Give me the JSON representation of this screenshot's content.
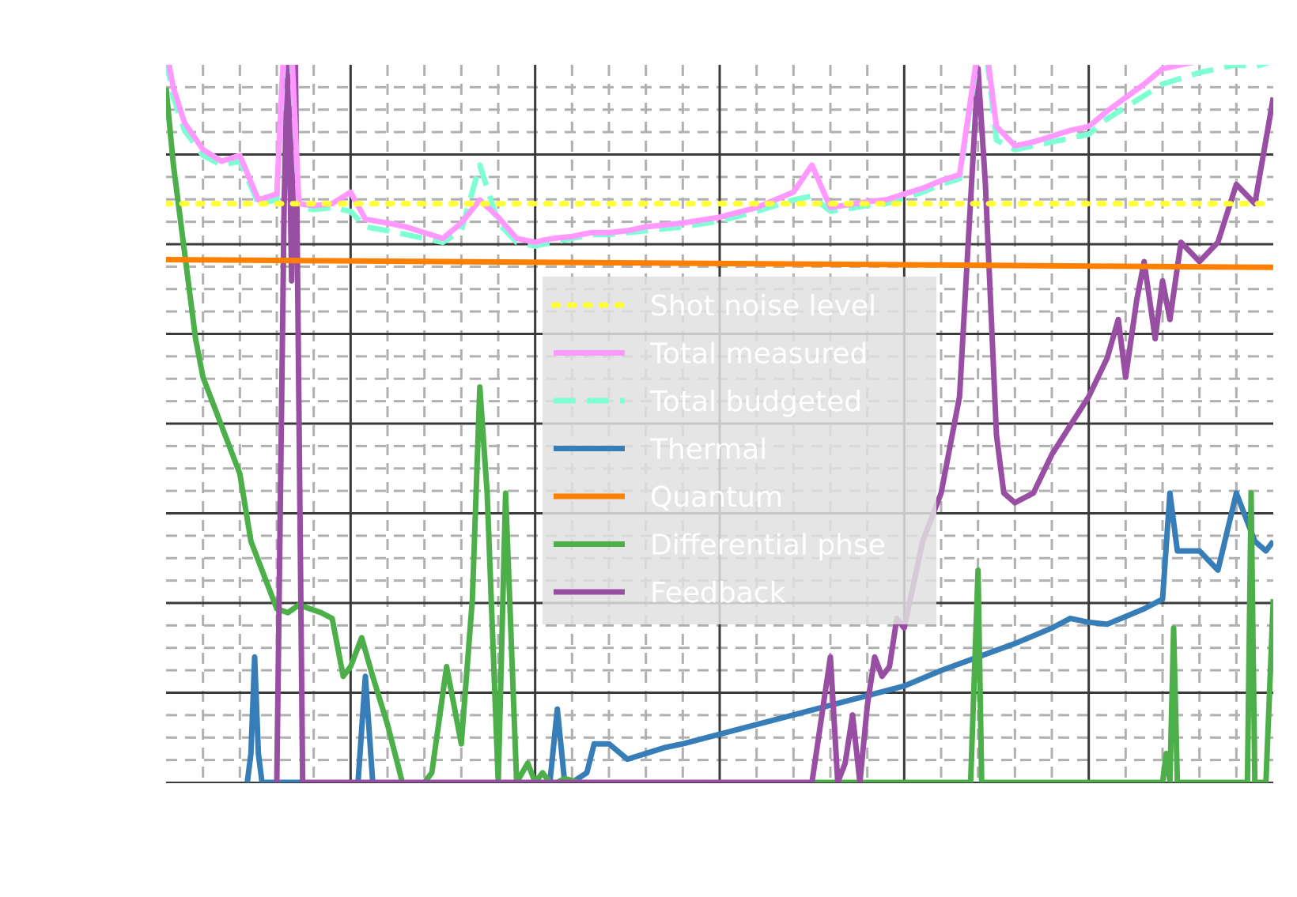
{
  "chart_data": {
    "type": "line",
    "title": "",
    "xlabel": "",
    "ylabel": "",
    "x_range": [
      0,
      3
    ],
    "y_range": [
      0,
      3.72
    ],
    "x_major_divisions": 6,
    "y_major_divisions": 8,
    "grid": true,
    "legend_position": "center",
    "series": [
      {
        "name": "Shot noise level",
        "color": "#ffff33",
        "style": "dotted",
        "x": [
          0,
          3
        ],
        "y": [
          3.0,
          3.0
        ]
      },
      {
        "name": "Total measured",
        "color": "#ff99ff",
        "style": "solid",
        "x": [
          0,
          0.02,
          0.05,
          0.1,
          0.15,
          0.2,
          0.25,
          0.3,
          0.32,
          0.34,
          0.36,
          0.4,
          0.45,
          0.5,
          0.54,
          0.6,
          0.65,
          0.7,
          0.75,
          0.8,
          0.85,
          0.9,
          0.95,
          1.0,
          1.02,
          1.05,
          1.1,
          1.15,
          1.2,
          1.25,
          1.3,
          1.4,
          1.5,
          1.6,
          1.7,
          1.75,
          1.8,
          1.9,
          1.95,
          2.0,
          2.05,
          2.1,
          2.15,
          2.2,
          2.22,
          2.25,
          2.3,
          2.35,
          2.4,
          2.45,
          2.5,
          2.55,
          2.6,
          2.65,
          2.7,
          2.75,
          2.8,
          2.85,
          2.9,
          2.95,
          3.0
        ],
        "y": [
          3.8,
          3.6,
          3.42,
          3.28,
          3.22,
          3.25,
          3.02,
          3.05,
          3.85,
          3.8,
          3.0,
          2.99,
          3.0,
          3.06,
          2.92,
          2.9,
          2.88,
          2.85,
          2.82,
          2.9,
          3.02,
          2.93,
          2.82,
          2.8,
          2.81,
          2.82,
          2.83,
          2.85,
          2.85,
          2.86,
          2.88,
          2.9,
          2.93,
          2.98,
          3.06,
          3.2,
          2.98,
          3.01,
          3.02,
          3.05,
          3.08,
          3.12,
          3.15,
          3.8,
          3.85,
          3.4,
          3.3,
          3.32,
          3.35,
          3.38,
          3.4,
          3.48,
          3.55,
          3.62,
          3.7,
          3.72,
          3.74,
          3.75,
          3.78,
          3.76,
          3.8
        ]
      },
      {
        "name": "Total budgeted",
        "color": "#7fffd4",
        "style": "dashed",
        "x": [
          0,
          0.02,
          0.05,
          0.1,
          0.15,
          0.2,
          0.25,
          0.3,
          0.32,
          0.34,
          0.36,
          0.4,
          0.45,
          0.5,
          0.54,
          0.6,
          0.65,
          0.7,
          0.75,
          0.8,
          0.85,
          0.9,
          0.95,
          1.0,
          1.02,
          1.05,
          1.1,
          1.15,
          1.2,
          1.25,
          1.3,
          1.4,
          1.5,
          1.6,
          1.7,
          1.75,
          1.8,
          1.9,
          1.95,
          2.0,
          2.05,
          2.1,
          2.15,
          2.2,
          2.22,
          2.25,
          2.3,
          2.35,
          2.4,
          2.45,
          2.5,
          2.55,
          2.6,
          2.65,
          2.7,
          2.75,
          2.8,
          2.85,
          2.9,
          2.95,
          3.0
        ],
        "y": [
          3.75,
          3.55,
          3.38,
          3.25,
          3.2,
          3.22,
          3.0,
          3.02,
          3.8,
          3.76,
          2.98,
          2.97,
          2.98,
          2.96,
          2.88,
          2.86,
          2.84,
          2.82,
          2.8,
          2.86,
          3.2,
          2.9,
          2.8,
          2.78,
          2.79,
          2.8,
          2.82,
          2.84,
          2.84,
          2.85,
          2.86,
          2.88,
          2.91,
          2.96,
          3.02,
          3.04,
          2.96,
          2.99,
          3.0,
          3.03,
          3.06,
          3.1,
          3.13,
          3.78,
          3.82,
          3.33,
          3.28,
          3.3,
          3.32,
          3.34,
          3.36,
          3.44,
          3.5,
          3.56,
          3.62,
          3.65,
          3.68,
          3.7,
          3.72,
          3.71,
          3.74
        ]
      },
      {
        "name": "Thermal",
        "color": "#377eb8",
        "style": "solid",
        "x": [
          0.22,
          0.23,
          0.24,
          0.25,
          0.26,
          0.52,
          0.54,
          0.56,
          1.0,
          1.04,
          1.06,
          1.08,
          1.1,
          1.14,
          1.16,
          1.2,
          1.25,
          1.3,
          1.35,
          1.4,
          1.5,
          1.6,
          1.7,
          1.8,
          1.9,
          2.0,
          2.1,
          2.2,
          2.3,
          2.4,
          2.45,
          2.5,
          2.55,
          2.6,
          2.65,
          2.7,
          2.72,
          2.74,
          2.8,
          2.85,
          2.9,
          2.95,
          2.98,
          3.0
        ],
        "y": [
          0.0,
          0.15,
          0.65,
          0.15,
          0.0,
          0.0,
          0.55,
          0.0,
          0.0,
          0.0,
          0.38,
          0.0,
          0.0,
          0.05,
          0.2,
          0.2,
          0.12,
          0.15,
          0.18,
          0.2,
          0.25,
          0.3,
          0.35,
          0.4,
          0.45,
          0.5,
          0.58,
          0.65,
          0.72,
          0.8,
          0.85,
          0.83,
          0.82,
          0.86,
          0.9,
          0.95,
          1.5,
          1.2,
          1.2,
          1.1,
          1.5,
          1.25,
          1.2,
          1.25
        ]
      },
      {
        "name": "Quantum",
        "color": "#ff7f00",
        "style": "solid",
        "x": [
          0,
          3
        ],
        "y": [
          2.71,
          2.67
        ]
      },
      {
        "name": "Differential phse",
        "color": "#4daf4a",
        "style": "solid",
        "x": [
          0,
          0.02,
          0.05,
          0.08,
          0.1,
          0.13,
          0.17,
          0.2,
          0.23,
          0.26,
          0.3,
          0.33,
          0.36,
          0.39,
          0.42,
          0.45,
          0.48,
          0.5,
          0.53,
          0.56,
          0.6,
          0.64,
          0.66,
          0.7,
          0.72,
          0.76,
          0.8,
          0.83,
          0.85,
          0.87,
          0.9,
          0.92,
          0.95,
          0.98,
          1.0,
          1.02,
          1.04,
          1.06,
          1.08,
          1.12,
          1.14,
          1.16,
          1.18,
          2.18,
          2.2,
          2.21,
          2.23,
          2.7,
          2.71,
          2.72,
          2.73,
          2.74,
          2.75,
          2.93,
          2.94,
          2.95,
          2.96,
          2.98,
          3.0
        ],
        "y": [
          3.6,
          3.2,
          2.75,
          2.3,
          2.1,
          1.95,
          1.75,
          1.6,
          1.25,
          1.1,
          0.9,
          0.88,
          0.92,
          0.9,
          0.88,
          0.85,
          0.55,
          0.6,
          0.75,
          0.55,
          0.3,
          0.0,
          0.0,
          0.0,
          0.05,
          0.6,
          0.2,
          0.95,
          2.05,
          1.5,
          0.0,
          1.5,
          0.0,
          0.1,
          0.0,
          0.05,
          0.0,
          0.0,
          0.02,
          0.0,
          0.0,
          0.0,
          0.0,
          0.0,
          1.1,
          0.0,
          0.0,
          0.0,
          0.15,
          0.0,
          0.8,
          0.0,
          0.0,
          0.0,
          1.5,
          0.0,
          0.0,
          0.0,
          0.95
        ]
      },
      {
        "name": "Feedback",
        "color": "#984ea3",
        "style": "solid",
        "x": [
          0.3,
          0.32,
          0.33,
          0.34,
          0.35,
          0.37,
          0.38,
          0.4,
          0.45,
          0.5,
          1.75,
          1.8,
          1.82,
          1.84,
          1.86,
          1.88,
          1.9,
          1.92,
          1.94,
          1.96,
          1.98,
          2.0,
          2.05,
          2.1,
          2.15,
          2.2,
          2.22,
          2.25,
          2.27,
          2.3,
          2.35,
          2.4,
          2.45,
          2.5,
          2.55,
          2.58,
          2.6,
          2.63,
          2.65,
          2.68,
          2.7,
          2.72,
          2.75,
          2.8,
          2.85,
          2.9,
          2.95,
          3.0
        ],
        "y": [
          0.0,
          3.0,
          3.85,
          2.6,
          3.85,
          0.0,
          0.0,
          0.0,
          0.0,
          0.0,
          0.0,
          0.65,
          0.0,
          0.1,
          0.35,
          0.0,
          0.4,
          0.65,
          0.55,
          0.6,
          0.85,
          0.8,
          1.25,
          1.5,
          2.0,
          3.7,
          3.1,
          1.8,
          1.5,
          1.45,
          1.5,
          1.7,
          1.85,
          2.0,
          2.2,
          2.4,
          2.1,
          2.5,
          2.7,
          2.3,
          2.6,
          2.4,
          2.8,
          2.7,
          2.8,
          3.1,
          3.0,
          3.55
        ]
      }
    ]
  }
}
